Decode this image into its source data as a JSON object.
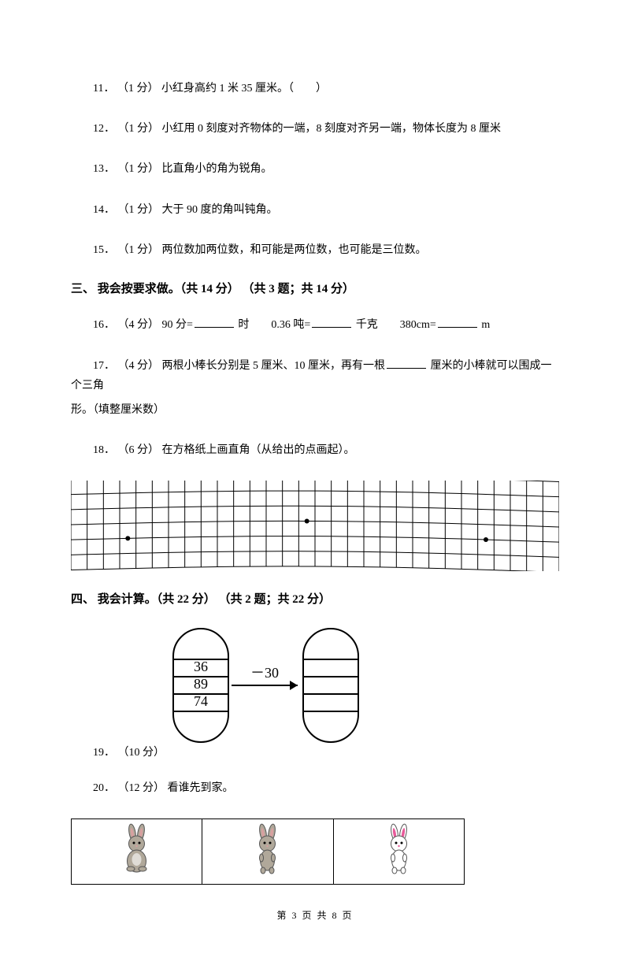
{
  "q11": {
    "num": "11．",
    "points": "（1 分）",
    "text": "小红身高约 1 米 35 厘米。（　　）"
  },
  "q12": {
    "num": "12．",
    "points": "（1 分）",
    "text": "小红用 0 刻度对齐物体的一端，8 刻度对齐另一端，物体长度为 8 厘米"
  },
  "q13": {
    "num": "13．",
    "points": "（1 分）",
    "text": "比直角小的角为锐角。"
  },
  "q14": {
    "num": "14．",
    "points": "（1 分）",
    "text": "大于 90 度的角叫钝角。"
  },
  "q15": {
    "num": "15．",
    "points": "（1 分）",
    "text": "两位数加两位数，和可能是两位数，也可能是三位数。"
  },
  "section3": {
    "title": "三、 我会按要求做。（共 14 分） （共 3 题；共 14 分）"
  },
  "q16": {
    "num": "16．",
    "points": "（4 分）",
    "parts": [
      "90 分=",
      "时　　0.36 吨=",
      "千克　　380cm=",
      "m"
    ]
  },
  "q17": {
    "num": "17．",
    "points": "（4 分）",
    "textA": "两根小棒长分别是 5 厘米、10 厘米，再有一根",
    "textB": "厘米的小棒就可以围成一个三角",
    "textC": "形。（填整厘米数）"
  },
  "q18": {
    "num": "18．",
    "points": "（6 分）",
    "text": "在方格纸上画直角（从给出的点画起）。"
  },
  "grid": {
    "rows": 7,
    "cols": 31,
    "stroke": "#000000",
    "dots": [
      {
        "row": 3,
        "col": 14.5
      },
      {
        "row": 4,
        "col": 3.5
      },
      {
        "row": 4,
        "col": 25.5
      }
    ],
    "warp": 6
  },
  "section4": {
    "title": "四、 我会计算。（共 22 分） （共 2 题；共 22 分）"
  },
  "capsule": {
    "left_values": [
      "36",
      "89",
      "74"
    ],
    "arrow_label": "－30",
    "stroke": "#000000",
    "font_size": 18
  },
  "q19": {
    "num": "19．",
    "points": "（10 分）"
  },
  "q20": {
    "num": "20．",
    "points": "（12 分）",
    "text": "看谁先到家。"
  },
  "rabbits": {
    "body_color_1": "#b0a89a",
    "body_color_2": "#b0a89a",
    "body_color_3": "#ffffff",
    "accent_color_3": "#e85a9a"
  },
  "footer": {
    "text": "第 3 页 共 8 页"
  }
}
